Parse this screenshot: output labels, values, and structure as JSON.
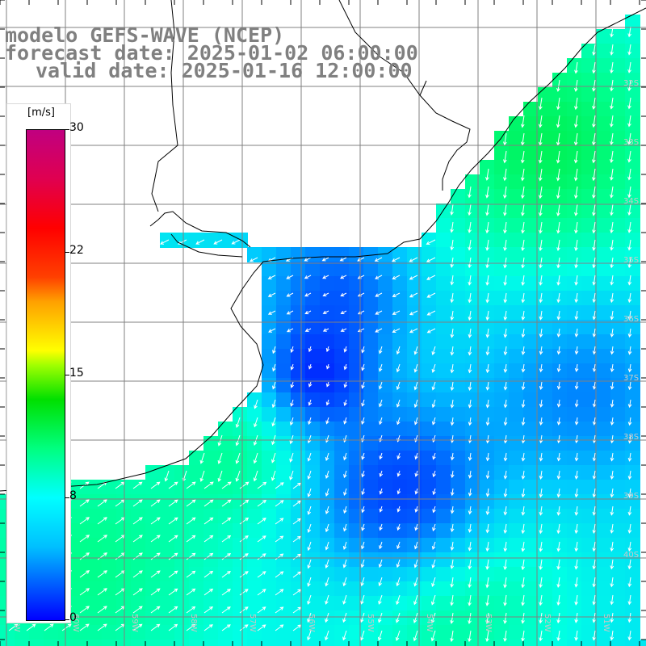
{
  "header": {
    "title": "modelo GEFS-WAVE (NCEP)",
    "forecast_date": "forecast date: 2025-01-02 06:00:00",
    "valid_date": "valid date: 2025-01-16 12:00:00"
  },
  "colorbar": {
    "unit": "[m/s]",
    "ticks": [
      "30",
      "22",
      "15",
      "8",
      "0"
    ],
    "colors": [
      "#0000ff",
      "#00c0ff",
      "#00ffff",
      "#00ff80",
      "#00e000",
      "#ffff00",
      "#ff4000",
      "#ff0000",
      "#c00080"
    ]
  },
  "map": {
    "field": "wind speed with direction arrows",
    "bottom_labels": [
      "61W",
      "60W",
      "59W",
      "58W",
      "57W",
      "56W",
      "55W",
      "54W",
      "53W",
      "52W",
      "51W"
    ],
    "right_labels": [
      "32S",
      "33S",
      "34S",
      "35S",
      "36S",
      "37S",
      "38S",
      "39S",
      "40S"
    ],
    "land_color": "#ffffff",
    "coast_color": "#000000",
    "grid_color": "#808080"
  }
}
